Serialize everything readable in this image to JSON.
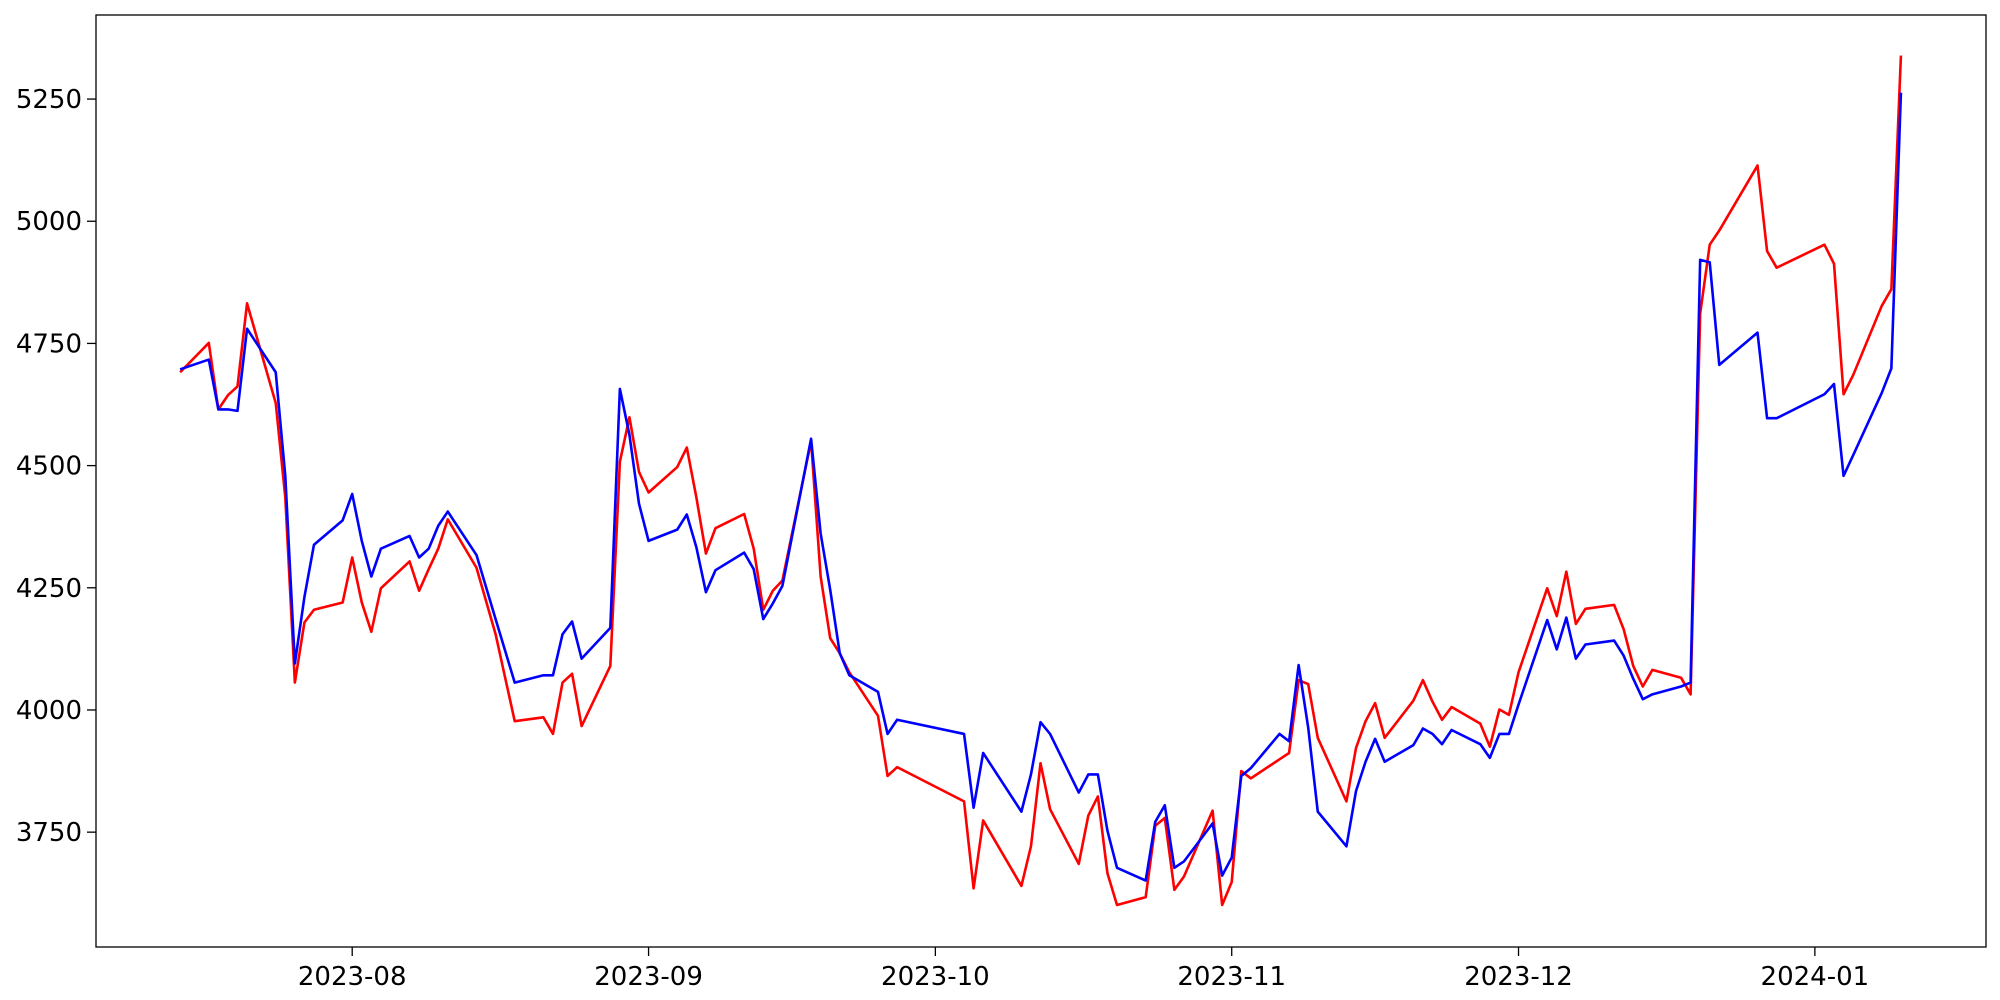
{
  "chart_data": {
    "type": "line",
    "x": [
      19552,
      19555,
      19556,
      19557,
      19558,
      19559,
      19562,
      19563,
      19564,
      19565,
      19566,
      19569,
      19570,
      19571,
      19572,
      19573,
      19576,
      19577,
      19578,
      19579,
      19580,
      19583,
      19585,
      19587,
      19590,
      19591,
      19592,
      19593,
      19594,
      19597,
      19598,
      19599,
      19600,
      19601,
      19604,
      19605,
      19606,
      19607,
      19608,
      19611,
      19612,
      19613,
      19614,
      19615,
      19618,
      19619,
      19620,
      19621,
      19622,
      19625,
      19626,
      19627,
      19634,
      19635,
      19636,
      19640,
      19641,
      19642,
      19643,
      19646,
      19647,
      19648,
      19649,
      19650,
      19653,
      19654,
      19655,
      19656,
      19657,
      19660,
      19661,
      19662,
      19663,
      19664,
      19667,
      19668,
      19669,
      19670,
      19671,
      19674,
      19675,
      19676,
      19677,
      19678,
      19681,
      19682,
      19683,
      19684,
      19685,
      19688,
      19689,
      19690,
      19691,
      19692,
      19695,
      19696,
      19697,
      19698,
      19699,
      19702,
      19703,
      19704,
      19705,
      19706,
      19709,
      19710,
      19711,
      19712,
      19713,
      19717,
      19718,
      19719,
      19724,
      19725,
      19726,
      19727,
      19730,
      19731,
      19732
    ],
    "series": [
      {
        "color": "#ff0000",
        "values": [
          4691,
          4751,
          4615,
          4644,
          4662,
          4832,
          4628,
          4435,
          4056,
          4179,
          4205,
          4220,
          4312,
          4220,
          4160,
          4249,
          4304,
          4244,
          4288,
          4330,
          4390,
          4291,
          4155,
          3977,
          3985,
          3951,
          4056,
          4074,
          3967,
          4090,
          4508,
          4599,
          4487,
          4445,
          4497,
          4537,
          4435,
          4320,
          4372,
          4401,
          4330,
          4205,
          4244,
          4265,
          4550,
          4273,
          4147,
          4116,
          4077,
          3988,
          3865,
          3883,
          3813,
          3635,
          3774,
          3640,
          3721,
          3891,
          3797,
          3685,
          3784,
          3823,
          3666,
          3601,
          3617,
          3763,
          3779,
          3632,
          3659,
          3794,
          3601,
          3648,
          3875,
          3860,
          3899,
          3912,
          4061,
          4053,
          3943,
          3813,
          3922,
          3977,
          4014,
          3943,
          4019,
          4061,
          4017,
          3980,
          4006,
          3972,
          3925,
          4001,
          3990,
          4077,
          4249,
          4192,
          4283,
          4176,
          4207,
          4215,
          4165,
          4090,
          4048,
          4082,
          4066,
          4032,
          4811,
          4952,
          4981,
          5114,
          4939,
          4905,
          4952,
          4913,
          4646,
          4685,
          4827,
          4861,
          5339
        ]
      },
      {
        "color": "#0000ff",
        "values": [
          4697,
          4717,
          4615,
          4615,
          4612,
          4780,
          4691,
          4479,
          4095,
          4231,
          4338,
          4388,
          4442,
          4346,
          4273,
          4330,
          4356,
          4312,
          4330,
          4377,
          4406,
          4317,
          4186,
          4056,
          4071,
          4071,
          4155,
          4181,
          4105,
          4168,
          4657,
          4563,
          4422,
          4346,
          4369,
          4400,
          4333,
          4241,
          4286,
          4322,
          4288,
          4186,
          4218,
          4254,
          4555,
          4361,
          4246,
          4116,
          4071,
          4037,
          3951,
          3980,
          3951,
          3800,
          3912,
          3792,
          3868,
          3975,
          3951,
          3831,
          3868,
          3868,
          3753,
          3677,
          3651,
          3771,
          3805,
          3677,
          3690,
          3768,
          3661,
          3698,
          3865,
          3881,
          3951,
          3936,
          4092,
          3964,
          3792,
          3721,
          3834,
          3894,
          3941,
          3894,
          3928,
          3962,
          3951,
          3930,
          3959,
          3930,
          3902,
          3951,
          3951,
          4011,
          4184,
          4124,
          4189,
          4105,
          4134,
          4142,
          4111,
          4064,
          4022,
          4032,
          4048,
          4056,
          4921,
          4916,
          4706,
          4772,
          4597,
          4597,
          4646,
          4667,
          4479,
          4521,
          4649,
          4699,
          5263
        ]
      }
    ],
    "xlim": [
      19543.2,
      19740.9
    ],
    "xticks": [
      {
        "value": 19570,
        "label": "2023-08"
      },
      {
        "value": 19601,
        "label": "2023-09"
      },
      {
        "value": 19631,
        "label": "2023-10"
      },
      {
        "value": 19662,
        "label": "2023-11"
      },
      {
        "value": 19692,
        "label": "2023-12"
      },
      {
        "value": 19723,
        "label": "2024-01"
      }
    ],
    "ylim": [
      3515,
      5422
    ],
    "yticks": [
      3750,
      4000,
      4250,
      4500,
      4750,
      5000,
      5250
    ],
    "grid": false
  }
}
